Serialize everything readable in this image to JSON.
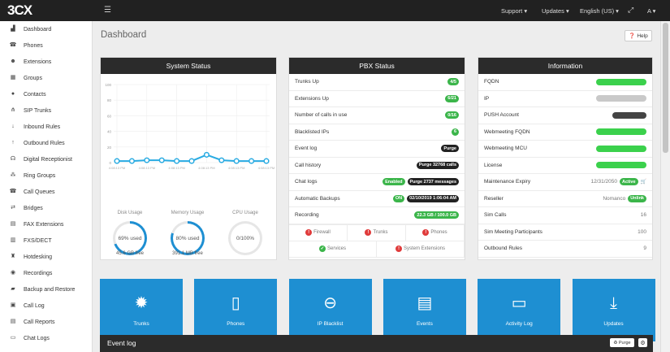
{
  "app": {
    "logo": "3CX"
  },
  "topbar": {
    "support": "Support ▾",
    "updates": "Updates ▾",
    "language": "English (US) ▾",
    "user": "A ▾"
  },
  "sidebar": {
    "items": [
      {
        "label": "Dashboard",
        "icon": "bar-chart-icon",
        "glyph": "▟"
      },
      {
        "label": "Phones",
        "icon": "phone-icon",
        "glyph": "☎"
      },
      {
        "label": "Extensions",
        "icon": "users-icon",
        "glyph": "☻"
      },
      {
        "label": "Groups",
        "icon": "grid-icon",
        "glyph": "▦"
      },
      {
        "label": "Contacts",
        "icon": "user-icon",
        "glyph": "●"
      },
      {
        "label": "SIP Trunks",
        "icon": "sitemap-icon",
        "glyph": "⋔"
      },
      {
        "label": "Inbound Rules",
        "icon": "arrow-down-icon",
        "glyph": "↓"
      },
      {
        "label": "Outbound Rules",
        "icon": "arrow-up-icon",
        "glyph": "↑"
      },
      {
        "label": "Digital Receptionist",
        "icon": "headset-icon",
        "glyph": "☊"
      },
      {
        "label": "Ring Groups",
        "icon": "ring-groups-icon",
        "glyph": "⁂"
      },
      {
        "label": "Call Queues",
        "icon": "call-queue-icon",
        "glyph": "☎"
      },
      {
        "label": "Bridges",
        "icon": "bridge-icon",
        "glyph": "⇄"
      },
      {
        "label": "FAX Extensions",
        "icon": "fax-icon",
        "glyph": "▤"
      },
      {
        "label": "FXS/DECT",
        "icon": "fxs-icon",
        "glyph": "▥"
      },
      {
        "label": "Hotdesking",
        "icon": "hotdesk-icon",
        "glyph": "♜"
      },
      {
        "label": "Recordings",
        "icon": "recordings-icon",
        "glyph": "◉"
      },
      {
        "label": "Backup and Restore",
        "icon": "folder-icon",
        "glyph": "▰"
      },
      {
        "label": "Call Log",
        "icon": "call-log-icon",
        "glyph": "▣"
      },
      {
        "label": "Call Reports",
        "icon": "reports-icon",
        "glyph": "▤"
      },
      {
        "label": "Chat Logs",
        "icon": "chat-icon",
        "glyph": "▭"
      }
    ]
  },
  "page": {
    "title": "Dashboard",
    "help": "Help"
  },
  "system_status": {
    "title": "System Status",
    "y_ticks": [
      "100",
      "80",
      "60",
      "40",
      "20",
      "0"
    ],
    "x_ticks": [
      "4:08:13 PM",
      "4:08:13 PM",
      "4:08:13 PM",
      "4:08:13 PM",
      "4:08:13 PM",
      "4:08:13 PM"
    ],
    "disk": {
      "label": "Disk Usage",
      "value": "69% used",
      "free": "45.6 GB free",
      "percent": 69
    },
    "memory": {
      "label": "Memory Usage",
      "value": "80% used",
      "free": "391.1 MB free",
      "percent": 80
    },
    "cpu": {
      "label": "CPU Usage",
      "value": "0/100%",
      "percent": 0
    }
  },
  "chart_data": {
    "type": "line",
    "title": "",
    "ylim": [
      0,
      100
    ],
    "y": [
      2,
      2,
      3,
      3,
      2,
      2,
      10,
      3,
      2,
      2,
      2
    ]
  },
  "pbx_status": {
    "title": "PBX Status",
    "rows": [
      {
        "label": "Trunks Up",
        "badges": [
          {
            "text": "4/5",
            "style": "green"
          }
        ]
      },
      {
        "label": "Extensions Up",
        "badges": [
          {
            "text": "6/21",
            "style": "green"
          }
        ]
      },
      {
        "label": "Number of calls in use",
        "badges": [
          {
            "text": "0/16",
            "style": "green"
          }
        ]
      },
      {
        "label": "Blacklisted IPs",
        "badges": [
          {
            "text": "6",
            "style": "green"
          }
        ]
      },
      {
        "label": "Event log",
        "badges": [
          {
            "text": "Purge",
            "style": "dark"
          }
        ]
      },
      {
        "label": "Call history",
        "badges": [
          {
            "text": "Purge 32768 calls",
            "style": "dark"
          }
        ]
      },
      {
        "label": "Chat logs",
        "badges": [
          {
            "text": "Enabled",
            "style": "green"
          },
          {
            "text": "Purge 2737 messages",
            "style": "dark"
          }
        ]
      },
      {
        "label": "Automatic Backups",
        "badges": [
          {
            "text": "ON",
            "style": "green"
          },
          {
            "text": "02/10/2019 1:06:04 AM",
            "style": "dark"
          }
        ]
      },
      {
        "label": "Recording",
        "badges": [
          {
            "text": "22.3 GB / 100.0 GB",
            "style": "green"
          }
        ]
      }
    ],
    "checks": [
      {
        "label": "Firewall",
        "status": "error"
      },
      {
        "label": "Trunks",
        "status": "error"
      },
      {
        "label": "Phones",
        "status": "error"
      },
      {
        "label": "Services",
        "status": "ok"
      },
      {
        "label": "System Extensions",
        "status": "error"
      }
    ]
  },
  "information": {
    "title": "Information",
    "rows": [
      {
        "label": "FQDN",
        "value": "",
        "mask": "green"
      },
      {
        "label": "IP",
        "value": "",
        "mask": "gray"
      },
      {
        "label": "PUSH Account",
        "value": "",
        "mask": "dark"
      },
      {
        "label": "Webmeeting FQDN",
        "value": "",
        "mask": "green"
      },
      {
        "label": "Webmeeting MCU",
        "value": "",
        "mask": "green"
      },
      {
        "label": "License",
        "value": "",
        "mask": "green"
      },
      {
        "label": "Maintenance Expiry",
        "value": "12/31/2050",
        "badge": "Active",
        "extra": "🛒"
      },
      {
        "label": "Reseller",
        "value": "Nomanco",
        "badge": "Unlink"
      },
      {
        "label": "Sim Calls",
        "value": "16"
      },
      {
        "label": "Sim Meeting Participants",
        "value": "100"
      },
      {
        "label": "Outbound Rules",
        "value": "9"
      }
    ]
  },
  "tiles": [
    {
      "label": "Trunks",
      "icon": "gear-icon",
      "glyph": "✹"
    },
    {
      "label": "Phones",
      "icon": "mobile-phone-icon",
      "glyph": "▯"
    },
    {
      "label": "IP Blacklist",
      "icon": "minus-circle-icon",
      "glyph": "⊖"
    },
    {
      "label": "Events",
      "icon": "document-icon",
      "glyph": "▤"
    },
    {
      "label": "Activity Log",
      "icon": "hard-drive-icon",
      "glyph": "▭"
    },
    {
      "label": "Updates",
      "icon": "download-icon",
      "glyph": "⤓"
    }
  ],
  "event_log": {
    "title": "Event log",
    "purge": "♻ Purge",
    "settings_glyph": "⚙"
  },
  "colors": {
    "accent": "#1e8fd2",
    "green": "#3bb54a",
    "dark": "#2b2b2b",
    "error": "#e03b3b"
  }
}
